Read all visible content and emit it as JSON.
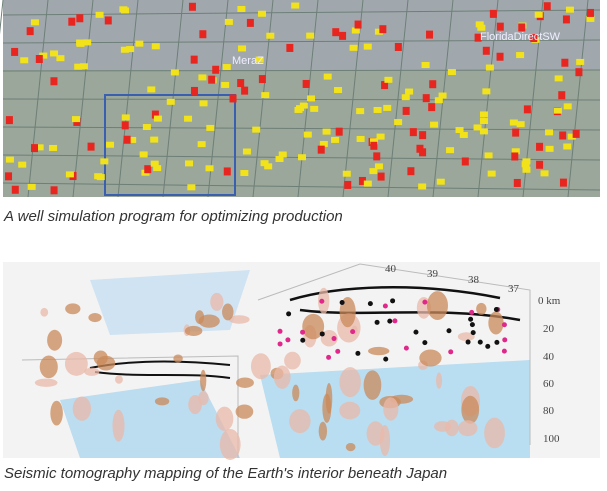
{
  "figures": [
    {
      "caption": "A well simulation program for optimizing production",
      "labels": [
        "MeraZ",
        "FloridaDirectSW"
      ]
    },
    {
      "caption": "Seismic tomography mapping of the Earth's interior beneath Japan",
      "top_labels": [
        "40",
        "39",
        "38",
        "37"
      ],
      "depth_labels": [
        "0 km",
        "20",
        "40",
        "60",
        "80",
        "100"
      ]
    }
  ]
}
